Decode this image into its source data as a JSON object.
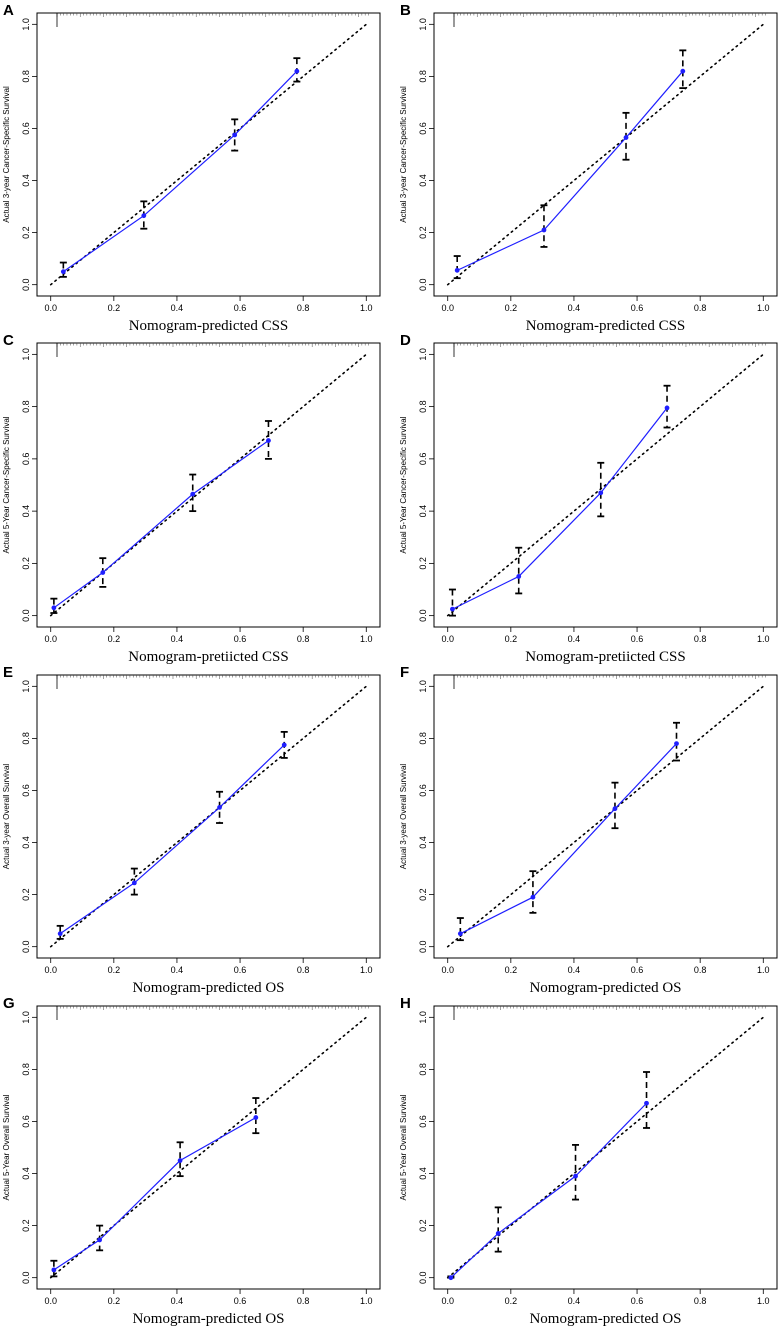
{
  "figure": {
    "description_none": ""
  },
  "chart_data": [
    {
      "panel": "A",
      "type": "line",
      "xlabel": "Nomogram-predicted CSS",
      "ylabel": "Actual 3-year Cancer-Specific Survival",
      "xlim": [
        0,
        1
      ],
      "ylim": [
        0,
        1
      ],
      "xticks": [
        "0.0",
        "0.2",
        "0.4",
        "0.6",
        "0.8",
        "1.0"
      ],
      "yticks": [
        "0.0",
        "0.2",
        "0.4",
        "0.6",
        "0.8",
        "1.0"
      ],
      "reference_line": "ideal (y = x), dotted",
      "series": [
        {
          "name": "calibration",
          "color": "#1f1fff",
          "x": [
            0.04,
            0.295,
            0.583,
            0.78
          ],
          "y": [
            0.05,
            0.265,
            0.575,
            0.82
          ],
          "ci_low": [
            0.03,
            0.215,
            0.515,
            0.78
          ],
          "ci_high": [
            0.085,
            0.32,
            0.635,
            0.87
          ]
        }
      ]
    },
    {
      "panel": "B",
      "type": "line",
      "xlabel": "Nomogram-predicted CSS",
      "ylabel": "Actual 3-year Cancer-Specific Survival",
      "xlim": [
        0,
        1
      ],
      "ylim": [
        0,
        1
      ],
      "xticks": [
        "0.0",
        "0.2",
        "0.4",
        "0.6",
        "0.8",
        "1.0"
      ],
      "yticks": [
        "0.0",
        "0.2",
        "0.4",
        "0.6",
        "0.8",
        "1.0"
      ],
      "reference_line": "ideal (y = x), dotted",
      "series": [
        {
          "name": "calibration",
          "color": "#1f1fff",
          "x": [
            0.03,
            0.305,
            0.565,
            0.745
          ],
          "y": [
            0.055,
            0.21,
            0.565,
            0.82
          ],
          "ci_low": [
            0.025,
            0.145,
            0.48,
            0.755
          ],
          "ci_high": [
            0.11,
            0.305,
            0.66,
            0.9
          ]
        }
      ]
    },
    {
      "panel": "C",
      "type": "line",
      "xlabel": "Nomogram-pretiicted CSS",
      "ylabel": "Actual 5-Year Cancer-Specific Survival",
      "xlim": [
        0,
        1
      ],
      "ylim": [
        0,
        1
      ],
      "xticks": [
        "0.0",
        "0.2",
        "0.4",
        "0.6",
        "0.8",
        "1.0"
      ],
      "yticks": [
        "0.0",
        "0.2",
        "0.4",
        "0.6",
        "0.8",
        "1.0"
      ],
      "reference_line": "ideal (y = x), dotted",
      "series": [
        {
          "name": "calibration",
          "color": "#1f1fff",
          "x": [
            0.01,
            0.165,
            0.45,
            0.69
          ],
          "y": [
            0.03,
            0.165,
            0.465,
            0.67
          ],
          "ci_low": [
            0.01,
            0.11,
            0.4,
            0.6
          ],
          "ci_high": [
            0.065,
            0.22,
            0.54,
            0.745
          ]
        }
      ]
    },
    {
      "panel": "D",
      "type": "line",
      "xlabel": "Nomogram-pretiicted CSS",
      "ylabel": "Actual 5-Year Cancer-Specific Survival",
      "xlim": [
        0,
        1
      ],
      "ylim": [
        0,
        1
      ],
      "xticks": [
        "0.0",
        "0.2",
        "0.4",
        "0.6",
        "0.8",
        "1.0"
      ],
      "yticks": [
        "0.0",
        "0.2",
        "0.4",
        "0.6",
        "0.8",
        "1.0"
      ],
      "reference_line": "ideal (y = x), dotted",
      "series": [
        {
          "name": "calibration",
          "color": "#1f1fff",
          "x": [
            0.015,
            0.225,
            0.485,
            0.695
          ],
          "y": [
            0.025,
            0.15,
            0.47,
            0.795
          ],
          "ci_low": [
            0.0,
            0.085,
            0.38,
            0.72
          ],
          "ci_high": [
            0.1,
            0.26,
            0.585,
            0.88
          ]
        }
      ]
    },
    {
      "panel": "E",
      "type": "line",
      "xlabel": "Nomogram-predicted OS",
      "ylabel": "Actual 3-year Overall Survival",
      "xlim": [
        0,
        1
      ],
      "ylim": [
        0,
        1
      ],
      "xticks": [
        "0.0",
        "0.2",
        "0.4",
        "0.6",
        "0.8",
        "1.0"
      ],
      "yticks": [
        "0.0",
        "0.2",
        "0.4",
        "0.6",
        "0.8",
        "1.0"
      ],
      "reference_line": "ideal (y = x), dotted",
      "series": [
        {
          "name": "calibration",
          "color": "#1f1fff",
          "x": [
            0.03,
            0.265,
            0.535,
            0.74
          ],
          "y": [
            0.05,
            0.245,
            0.535,
            0.775
          ],
          "ci_low": [
            0.03,
            0.2,
            0.475,
            0.725
          ],
          "ci_high": [
            0.08,
            0.3,
            0.595,
            0.825
          ]
        }
      ]
    },
    {
      "panel": "F",
      "type": "line",
      "xlabel": "Nomogram-predicted OS",
      "ylabel": "Actual 3-year Overall Survival",
      "xlim": [
        0,
        1
      ],
      "ylim": [
        0,
        1
      ],
      "xticks": [
        "0.0",
        "0.2",
        "0.4",
        "0.6",
        "0.8",
        "1.0"
      ],
      "yticks": [
        "0.0",
        "0.2",
        "0.4",
        "0.6",
        "0.8",
        "1.0"
      ],
      "reference_line": "ideal (y = x), dotted",
      "series": [
        {
          "name": "calibration",
          "color": "#1f1fff",
          "x": [
            0.04,
            0.27,
            0.53,
            0.725
          ],
          "y": [
            0.05,
            0.19,
            0.53,
            0.78
          ],
          "ci_low": [
            0.025,
            0.13,
            0.455,
            0.715
          ],
          "ci_high": [
            0.11,
            0.29,
            0.63,
            0.86
          ]
        }
      ]
    },
    {
      "panel": "G",
      "type": "line",
      "xlabel": "Nomogram-predicted OS",
      "ylabel": "Actual 5-Year Overall Survival",
      "xlim": [
        0,
        1
      ],
      "ylim": [
        0,
        1
      ],
      "xticks": [
        "0.0",
        "0.2",
        "0.4",
        "0.6",
        "0.8",
        "1.0"
      ],
      "yticks": [
        "0.0",
        "0.2",
        "0.4",
        "0.6",
        "0.8",
        "1.0"
      ],
      "reference_line": "ideal (y = x), dotted",
      "series": [
        {
          "name": "calibration",
          "color": "#1f1fff",
          "x": [
            0.01,
            0.155,
            0.41,
            0.65
          ],
          "y": [
            0.03,
            0.145,
            0.45,
            0.615
          ],
          "ci_low": [
            0.005,
            0.105,
            0.39,
            0.555
          ],
          "ci_high": [
            0.065,
            0.2,
            0.52,
            0.69
          ]
        }
      ]
    },
    {
      "panel": "H",
      "type": "line",
      "xlabel": "Nomogram-predicted OS",
      "ylabel": "Actual 5-Year Overall Survival",
      "xlim": [
        0,
        1
      ],
      "ylim": [
        0,
        1
      ],
      "xticks": [
        "0.0",
        "0.2",
        "0.4",
        "0.6",
        "0.8",
        "1.0"
      ],
      "yticks": [
        "0.0",
        "0.2",
        "0.4",
        "0.6",
        "0.8",
        "1.0"
      ],
      "reference_line": "ideal (y = x), dotted",
      "series": [
        {
          "name": "calibration",
          "color": "#1f1fff",
          "x": [
            0.01,
            0.16,
            0.405,
            0.63
          ],
          "y": [
            0.0,
            0.17,
            0.39,
            0.67
          ],
          "ci_low": [
            0.0,
            0.1,
            0.3,
            0.575
          ],
          "ci_high": [
            0.005,
            0.27,
            0.51,
            0.79
          ]
        }
      ]
    }
  ]
}
